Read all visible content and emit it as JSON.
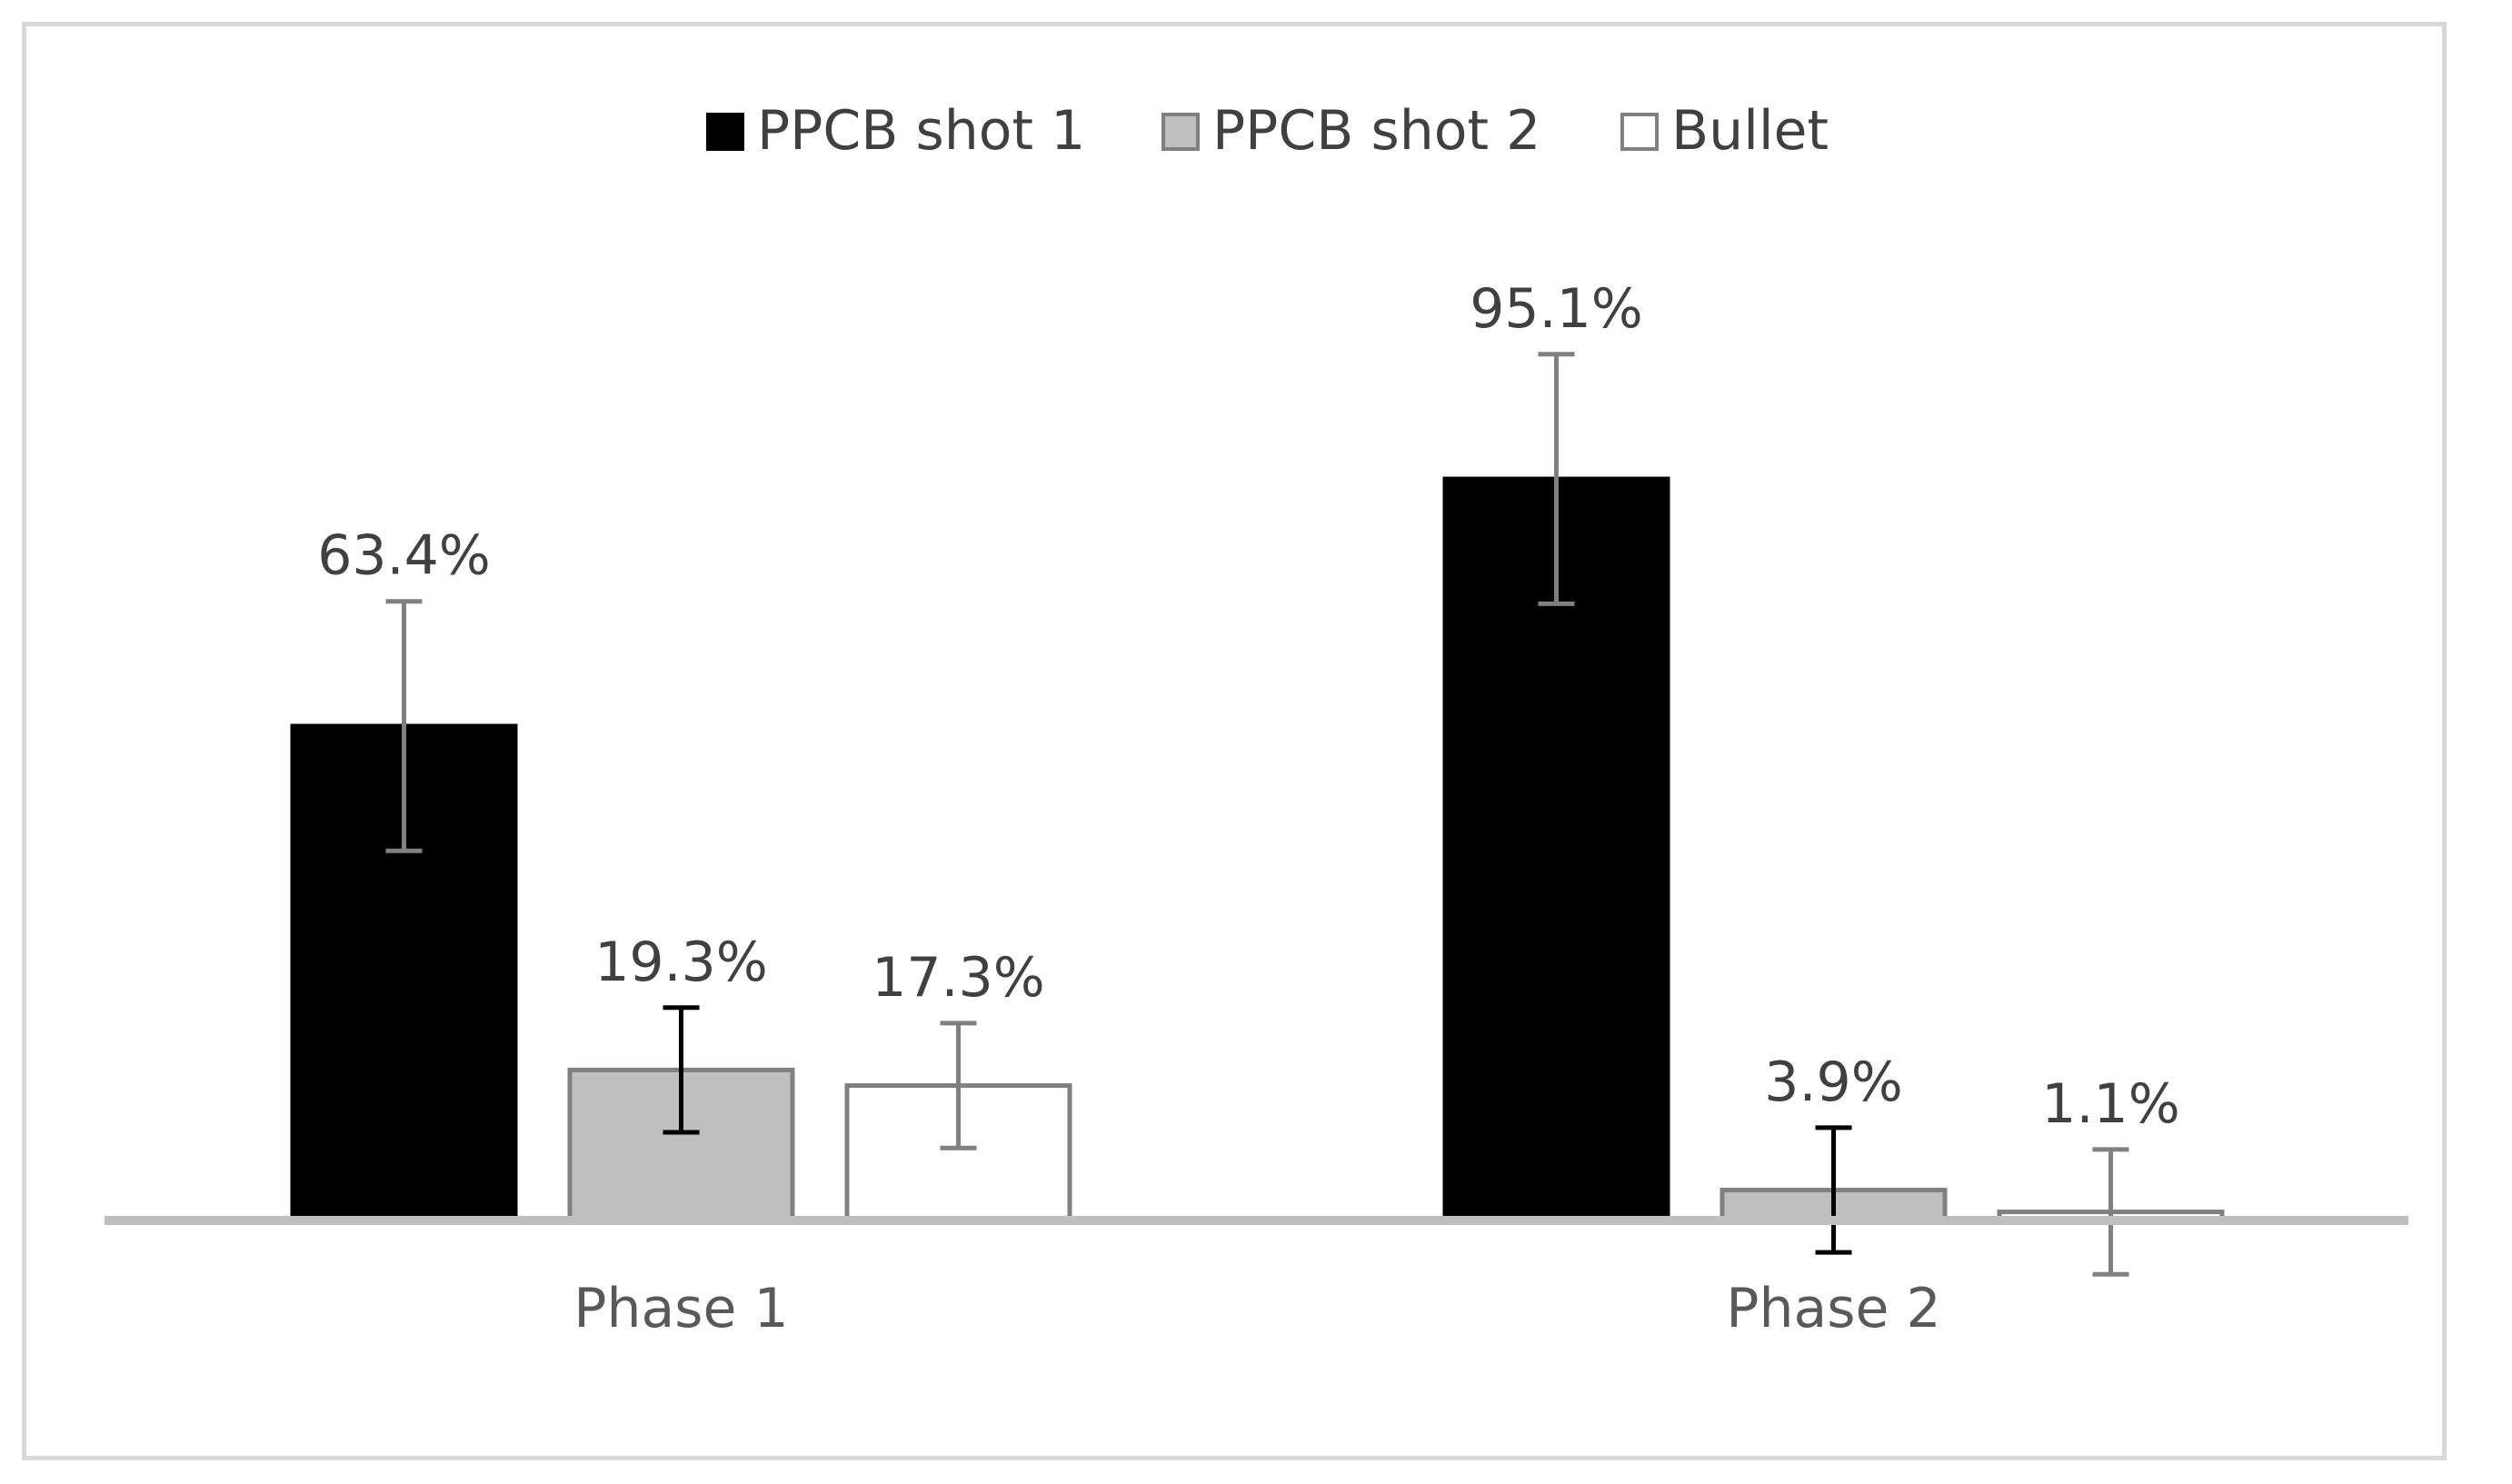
{
  "chart_data": {
    "type": "bar",
    "title": "",
    "xlabel": "",
    "ylabel": "",
    "categories": [
      "Phase 1",
      "Phase 2"
    ],
    "ylim": [
      0,
      100
    ],
    "legend_position": "top-center",
    "grid": false,
    "series": [
      {
        "name": "PPCB shot 1",
        "values": [
          63.4,
          95.1
        ],
        "labels": [
          "63.4%",
          "95.1%"
        ],
        "error": [
          16,
          16
        ],
        "fill": "#000000",
        "stroke": "#000000",
        "error_color": "#808080"
      },
      {
        "name": "PPCB shot 2",
        "values": [
          19.3,
          3.9
        ],
        "labels": [
          "19.3%",
          "3.9%"
        ],
        "error": [
          8,
          8
        ],
        "fill": "#bfbfbf",
        "stroke": "#808080",
        "error_color": "#000000"
      },
      {
        "name": "Bullet",
        "values": [
          17.3,
          1.1
        ],
        "labels": [
          "17.3%",
          "1.1%"
        ],
        "error": [
          8,
          8
        ],
        "fill": "#ffffff",
        "stroke": "#808080",
        "error_color": "#808080"
      }
    ]
  }
}
